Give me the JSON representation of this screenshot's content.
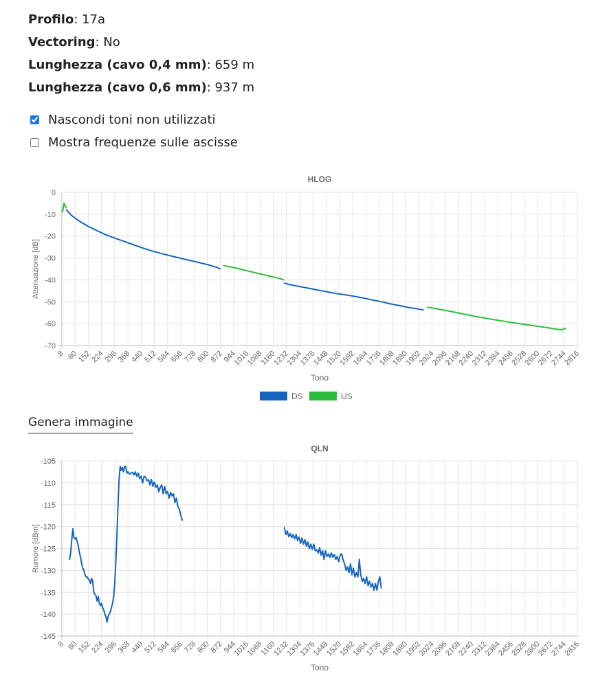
{
  "info": [
    {
      "label": "Profilo",
      "value": "17a"
    },
    {
      "label": "Vectoring",
      "value": "No"
    },
    {
      "label": "Lunghezza (cavo 0,4 mm)",
      "value": "659 m"
    },
    {
      "label": "Lunghezza (cavo 0,6 mm)",
      "value": "937 m"
    }
  ],
  "options": {
    "hide_unused": {
      "label": "Nascondi toni non utilizzati",
      "checked": true
    },
    "show_freq": {
      "label": "Mostra frequenze sulle ascisse",
      "checked": false
    }
  },
  "generate_image_label": "Genera immagine",
  "colors": {
    "ds": "#1565c0",
    "us": "#2bbd3b"
  },
  "chart_data": [
    {
      "type": "line",
      "title": "HLOG",
      "xlabel": "Tono",
      "ylabel": "Attenuazione [dB]",
      "xlim": [
        8,
        2816
      ],
      "ylim": [
        -70,
        0
      ],
      "x_ticks": [
        8,
        80,
        152,
        224,
        296,
        368,
        440,
        512,
        584,
        656,
        728,
        800,
        872,
        944,
        1016,
        1088,
        1160,
        1232,
        1304,
        1376,
        1448,
        1520,
        1592,
        1664,
        1736,
        1808,
        1880,
        1952,
        2024,
        2096,
        2168,
        2240,
        2312,
        2384,
        2456,
        2528,
        2600,
        2672,
        2744,
        2816
      ],
      "y_ticks": [
        0,
        -10,
        -20,
        -30,
        -40,
        -50,
        -60,
        -70
      ],
      "grid": true,
      "legend": "bottom-center",
      "series": [
        {
          "name": "US",
          "color_key": "us",
          "points": [
            [
              8,
              -9
            ],
            [
              14,
              -8
            ],
            [
              20,
              -5
            ],
            [
              26,
              -6
            ],
            [
              32,
              -7
            ]
          ]
        },
        {
          "name": "DS",
          "color_key": "ds",
          "points": [
            [
              33,
              -8
            ],
            [
              60,
              -10.5
            ],
            [
              100,
              -13
            ],
            [
              150,
              -15.5
            ],
            [
              200,
              -17.5
            ],
            [
              250,
              -19.5
            ],
            [
              300,
              -21
            ],
            [
              350,
              -22.5
            ],
            [
              400,
              -24
            ],
            [
              450,
              -25.5
            ],
            [
              500,
              -26.8
            ],
            [
              550,
              -28
            ],
            [
              600,
              -29
            ],
            [
              650,
              -30
            ],
            [
              700,
              -31
            ],
            [
              750,
              -32
            ],
            [
              800,
              -33
            ],
            [
              850,
              -34.2
            ],
            [
              870,
              -35
            ]
          ]
        },
        {
          "name": "US",
          "color_key": "us",
          "points": [
            [
              890,
              -33.5
            ],
            [
              950,
              -34.5
            ],
            [
              1000,
              -35.5
            ],
            [
              1050,
              -36.5
            ],
            [
              1100,
              -37.5
            ],
            [
              1150,
              -38.5
            ],
            [
              1200,
              -39.5
            ],
            [
              1215,
              -40
            ]
          ]
        },
        {
          "name": "DS",
          "color_key": "ds",
          "points": [
            [
              1220,
              -41.5
            ],
            [
              1250,
              -42.2
            ],
            [
              1300,
              -43
            ],
            [
              1350,
              -43.8
            ],
            [
              1400,
              -44.6
            ],
            [
              1450,
              -45.4
            ],
            [
              1500,
              -46.2
            ],
            [
              1550,
              -46.8
            ],
            [
              1600,
              -47.5
            ],
            [
              1650,
              -48.3
            ],
            [
              1700,
              -49.2
            ],
            [
              1750,
              -50
            ],
            [
              1800,
              -51
            ],
            [
              1850,
              -51.8
            ],
            [
              1900,
              -52.7
            ],
            [
              1950,
              -53.3
            ],
            [
              1975,
              -53.7
            ]
          ]
        },
        {
          "name": "US",
          "color_key": "us",
          "points": [
            [
              2000,
              -52.5
            ],
            [
              2050,
              -53.2
            ],
            [
              2100,
              -54
            ],
            [
              2150,
              -54.8
            ],
            [
              2200,
              -55.7
            ],
            [
              2250,
              -56.5
            ],
            [
              2300,
              -57.3
            ],
            [
              2350,
              -58
            ],
            [
              2400,
              -58.7
            ],
            [
              2450,
              -59.4
            ],
            [
              2500,
              -60
            ],
            [
              2550,
              -60.6
            ],
            [
              2600,
              -61.2
            ],
            [
              2650,
              -61.8
            ],
            [
              2700,
              -62.5
            ],
            [
              2730,
              -62.8
            ],
            [
              2750,
              -62.2
            ]
          ]
        }
      ],
      "legend_items": [
        {
          "name": "DS",
          "color_key": "ds"
        },
        {
          "name": "US",
          "color_key": "us"
        }
      ]
    },
    {
      "type": "line",
      "title": "QLN",
      "xlabel": "Tono",
      "ylabel": "Rumore [dBm]",
      "xlim": [
        8,
        2816
      ],
      "ylim": [
        -145,
        -105
      ],
      "x_ticks": [
        8,
        80,
        152,
        224,
        296,
        368,
        440,
        512,
        584,
        656,
        728,
        800,
        872,
        944,
        1016,
        1088,
        1160,
        1232,
        1304,
        1376,
        1448,
        1520,
        1592,
        1664,
        1736,
        1808,
        1880,
        1952,
        2024,
        2096,
        2168,
        2240,
        2312,
        2384,
        2456,
        2528,
        2600,
        2672,
        2744,
        2816
      ],
      "y_ticks": [
        -105,
        -110,
        -115,
        -120,
        -125,
        -130,
        -135,
        -140,
        -145
      ],
      "grid": true,
      "series": [
        {
          "name": "DS",
          "color_key": "ds",
          "points": [
            [
              50,
              -127.5
            ],
            [
              56,
              -126
            ],
            [
              62,
              -123
            ],
            [
              68,
              -120.5
            ],
            [
              74,
              -122.5
            ],
            [
              80,
              -122.8
            ],
            [
              86,
              -122.5
            ],
            [
              92,
              -123.5
            ],
            [
              98,
              -124.5
            ],
            [
              104,
              -126
            ],
            [
              110,
              -127
            ],
            [
              116,
              -128.5
            ],
            [
              122,
              -129.5
            ],
            [
              128,
              -130
            ],
            [
              134,
              -131
            ],
            [
              140,
              -131.5
            ],
            [
              146,
              -131.5
            ],
            [
              152,
              -132
            ],
            [
              158,
              -132.2
            ],
            [
              164,
              -133
            ],
            [
              170,
              -131.8
            ],
            [
              176,
              -132.5
            ],
            [
              182,
              -135
            ],
            [
              188,
              -135.5
            ],
            [
              194,
              -135.8
            ],
            [
              200,
              -137
            ],
            [
              206,
              -136
            ],
            [
              212,
              -137.5
            ],
            [
              218,
              -138
            ],
            [
              224,
              -137.5
            ],
            [
              230,
              -138.5
            ],
            [
              236,
              -139
            ],
            [
              242,
              -140
            ],
            [
              248,
              -140.5
            ],
            [
              254,
              -141.8
            ],
            [
              260,
              -140.5
            ],
            [
              266,
              -140
            ],
            [
              272,
              -139.5
            ],
            [
              278,
              -138.5
            ],
            [
              284,
              -137.5
            ],
            [
              290,
              -136
            ],
            [
              296,
              -133
            ],
            [
              302,
              -128
            ],
            [
              308,
              -122
            ],
            [
              314,
              -115
            ],
            [
              320,
              -109
            ],
            [
              326,
              -106.2
            ],
            [
              332,
              -107.2
            ],
            [
              338,
              -106.5
            ],
            [
              344,
              -107.5
            ],
            [
              350,
              -106.3
            ],
            [
              356,
              -106.2
            ],
            [
              362,
              -107.8
            ],
            [
              368,
              -107.5
            ],
            [
              376,
              -108
            ],
            [
              384,
              -107.8
            ],
            [
              392,
              -107.6
            ],
            [
              400,
              -108.2
            ],
            [
              408,
              -107.5
            ],
            [
              416,
              -108.5
            ],
            [
              424,
              -107.8
            ],
            [
              432,
              -109
            ],
            [
              440,
              -108.5
            ],
            [
              448,
              -110
            ],
            [
              456,
              -108.5
            ],
            [
              464,
              -108.7
            ],
            [
              472,
              -109.5
            ],
            [
              480,
              -109.3
            ],
            [
              488,
              -110.5
            ],
            [
              496,
              -109.2
            ],
            [
              504,
              -110.8
            ],
            [
              512,
              -109.8
            ],
            [
              520,
              -111
            ],
            [
              528,
              -110.5
            ],
            [
              536,
              -112
            ],
            [
              544,
              -111
            ],
            [
              552,
              -110.5
            ],
            [
              560,
              -112.5
            ],
            [
              568,
              -110.8
            ],
            [
              576,
              -112.5
            ],
            [
              584,
              -112
            ],
            [
              592,
              -113.5
            ],
            [
              600,
              -112.2
            ],
            [
              608,
              -113
            ],
            [
              616,
              -112.5
            ],
            [
              624,
              -114.5
            ],
            [
              632,
              -113.5
            ],
            [
              640,
              -115.5
            ],
            [
              648,
              -116
            ],
            [
              656,
              -117.5
            ],
            [
              664,
              -118.5
            ]
          ]
        },
        {
          "name": "DS",
          "color_key": "ds",
          "points": [
            [
              1220,
              -120.2
            ],
            [
              1228,
              -121.8
            ],
            [
              1236,
              -121
            ],
            [
              1244,
              -122.3
            ],
            [
              1252,
              -121.6
            ],
            [
              1260,
              -122.5
            ],
            [
              1268,
              -121.8
            ],
            [
              1276,
              -122.8
            ],
            [
              1284,
              -121.8
            ],
            [
              1292,
              -123.2
            ],
            [
              1300,
              -122.4
            ],
            [
              1308,
              -123.8
            ],
            [
              1316,
              -122.6
            ],
            [
              1324,
              -124
            ],
            [
              1332,
              -123
            ],
            [
              1340,
              -124.5
            ],
            [
              1348,
              -123.5
            ],
            [
              1356,
              -125
            ],
            [
              1364,
              -124
            ],
            [
              1372,
              -125.2
            ],
            [
              1380,
              -124
            ],
            [
              1388,
              -125.5
            ],
            [
              1396,
              -125.3
            ],
            [
              1404,
              -126
            ],
            [
              1412,
              -124.8
            ],
            [
              1420,
              -126.5
            ],
            [
              1428,
              -125.5
            ],
            [
              1436,
              -127.5
            ],
            [
              1444,
              -125.5
            ],
            [
              1452,
              -126.8
            ],
            [
              1460,
              -126.2
            ],
            [
              1468,
              -127
            ],
            [
              1476,
              -126
            ],
            [
              1484,
              -127
            ],
            [
              1492,
              -126.4
            ],
            [
              1500,
              -127.5
            ],
            [
              1508,
              -126.8
            ],
            [
              1516,
              -128
            ],
            [
              1524,
              -126.5
            ],
            [
              1532,
              -126.2
            ],
            [
              1540,
              -127.6
            ],
            [
              1548,
              -128.5
            ],
            [
              1556,
              -130
            ],
            [
              1564,
              -129.2
            ],
            [
              1572,
              -130.5
            ],
            [
              1580,
              -128.5
            ],
            [
              1588,
              -131
            ],
            [
              1596,
              -129.5
            ],
            [
              1604,
              -131.5
            ],
            [
              1612,
              -130.5
            ],
            [
              1620,
              -131.5
            ],
            [
              1628,
              -127.5
            ],
            [
              1636,
              -131
            ],
            [
              1644,
              -132.5
            ],
            [
              1652,
              -131.8
            ],
            [
              1660,
              -133
            ],
            [
              1668,
              -131.5
            ],
            [
              1676,
              -133.5
            ],
            [
              1684,
              -132.5
            ],
            [
              1692,
              -133.8
            ],
            [
              1700,
              -133
            ],
            [
              1708,
              -134.5
            ],
            [
              1716,
              -133
            ],
            [
              1724,
              -134.5
            ],
            [
              1732,
              -132.5
            ],
            [
              1740,
              -131.5
            ],
            [
              1748,
              -134
            ]
          ]
        }
      ]
    }
  ]
}
